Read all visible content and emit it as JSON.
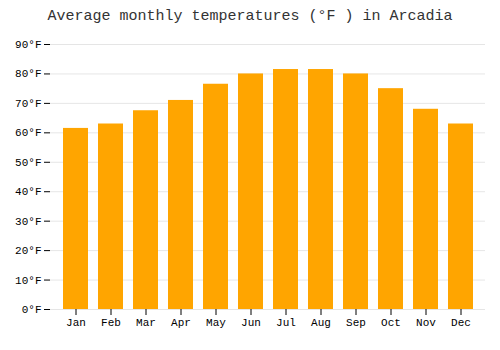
{
  "chart_data": {
    "type": "bar",
    "title": "Average monthly temperatures (°F ) in Arcadia",
    "categories": [
      "Jan",
      "Feb",
      "Mar",
      "Apr",
      "May",
      "Jun",
      "Jul",
      "Aug",
      "Sep",
      "Oct",
      "Nov",
      "Dec"
    ],
    "values": [
      61.5,
      63.0,
      67.5,
      71.0,
      76.5,
      80.0,
      81.5,
      81.5,
      80.0,
      75.0,
      68.0,
      63.0
    ],
    "color": "#FFA500",
    "ylim": [
      0,
      90
    ],
    "yticks": [
      {
        "value": 0,
        "label": "0°F"
      },
      {
        "value": 10,
        "label": "10°F"
      },
      {
        "value": 20,
        "label": "20°F"
      },
      {
        "value": 30,
        "label": "30°F"
      },
      {
        "value": 40,
        "label": "40°F"
      },
      {
        "value": 50,
        "label": "50°F"
      },
      {
        "value": 60,
        "label": "60°F"
      },
      {
        "value": 70,
        "label": "70°F"
      },
      {
        "value": 80,
        "label": "80°F"
      },
      {
        "value": 90,
        "label": "90°F"
      }
    ],
    "grid": true
  }
}
